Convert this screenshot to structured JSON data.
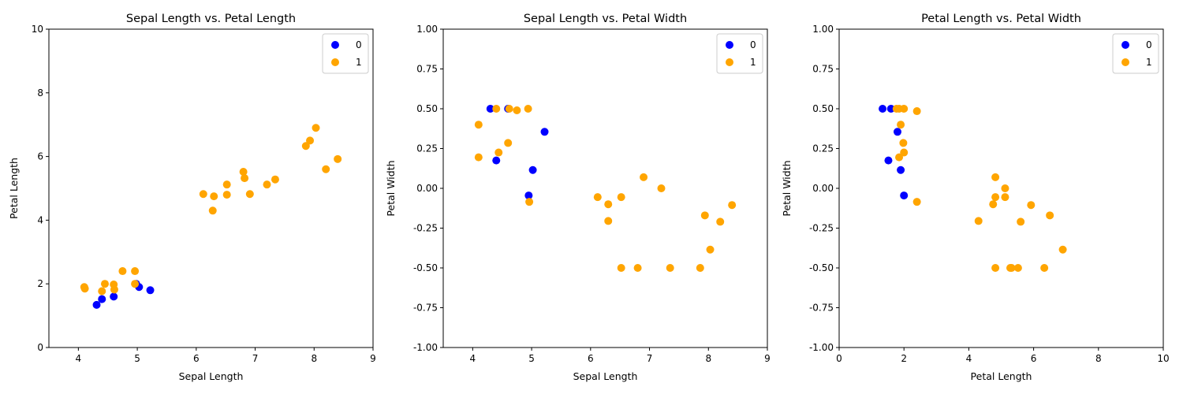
{
  "colors": {
    "series_0": "#0000ff",
    "series_1": "#ffa500"
  },
  "chart_data": [
    {
      "type": "scatter",
      "title": "Sepal Length vs. Petal Length",
      "xlabel": "Sepal Length",
      "ylabel": "Petal Length",
      "xlim": [
        3.5,
        9
      ],
      "ylim": [
        0,
        10
      ],
      "xticks": [
        4,
        5,
        6,
        7,
        8,
        9
      ],
      "yticks": [
        0,
        2,
        4,
        6,
        8,
        10
      ],
      "legend_position": "top-right",
      "series": [
        {
          "name": "0",
          "color": "#0000ff",
          "points": [
            [
              4.31,
              1.34
            ],
            [
              4.4,
              1.52
            ],
            [
              4.6,
              1.6
            ],
            [
              4.98,
              2.0
            ],
            [
              5.03,
              1.9
            ],
            [
              5.22,
              1.8
            ]
          ]
        },
        {
          "name": "1",
          "color": "#ffa500",
          "points": [
            [
              4.1,
              1.9
            ],
            [
              4.11,
              1.85
            ],
            [
              4.4,
              1.77
            ],
            [
              4.45,
              2.0
            ],
            [
              4.6,
              1.98
            ],
            [
              4.61,
              1.82
            ],
            [
              4.75,
              2.4
            ],
            [
              4.96,
              2.4
            ],
            [
              4.96,
              2.0
            ],
            [
              6.12,
              4.82
            ],
            [
              6.28,
              4.3
            ],
            [
              6.3,
              4.75
            ],
            [
              6.52,
              5.12
            ],
            [
              6.52,
              4.8
            ],
            [
              6.8,
              5.52
            ],
            [
              6.82,
              5.32
            ],
            [
              6.91,
              4.82
            ],
            [
              7.2,
              5.12
            ],
            [
              7.34,
              5.28
            ],
            [
              7.86,
              6.33
            ],
            [
              7.93,
              6.5
            ],
            [
              8.03,
              6.9
            ],
            [
              8.2,
              5.6
            ],
            [
              8.4,
              5.92
            ]
          ]
        }
      ]
    },
    {
      "type": "scatter",
      "title": "Sepal Length vs. Petal Width",
      "xlabel": "Sepal Length",
      "ylabel": "Petal Width",
      "xlim": [
        3.5,
        9
      ],
      "ylim": [
        -1,
        1
      ],
      "xticks": [
        4,
        5,
        6,
        7,
        8,
        9
      ],
      "yticks": [
        -1.0,
        -0.75,
        -0.5,
        -0.25,
        0.0,
        0.25,
        0.5,
        0.75,
        1.0
      ],
      "legend_position": "top-right",
      "series": [
        {
          "name": "0",
          "color": "#0000ff",
          "points": [
            [
              4.3,
              0.5
            ],
            [
              4.4,
              0.175
            ],
            [
              4.6,
              0.5
            ],
            [
              4.95,
              -0.045
            ],
            [
              5.02,
              0.115
            ],
            [
              5.22,
              0.355
            ]
          ]
        },
        {
          "name": "1",
          "color": "#ffa500",
          "points": [
            [
              4.1,
              0.4
            ],
            [
              4.1,
              0.195
            ],
            [
              4.4,
              0.5
            ],
            [
              4.44,
              0.225
            ],
            [
              4.6,
              0.285
            ],
            [
              4.62,
              0.5
            ],
            [
              4.75,
              0.49
            ],
            [
              4.94,
              0.5
            ],
            [
              4.96,
              -0.085
            ],
            [
              6.12,
              -0.055
            ],
            [
              6.3,
              -0.1
            ],
            [
              6.3,
              -0.205
            ],
            [
              6.52,
              -0.055
            ],
            [
              6.52,
              -0.5
            ],
            [
              6.8,
              -0.5
            ],
            [
              6.9,
              0.07
            ],
            [
              7.2,
              0.0
            ],
            [
              7.35,
              -0.5
            ],
            [
              7.86,
              -0.5
            ],
            [
              7.94,
              -0.17
            ],
            [
              8.03,
              -0.385
            ],
            [
              8.2,
              -0.21
            ],
            [
              8.4,
              -0.105
            ]
          ]
        }
      ]
    },
    {
      "type": "scatter",
      "title": "Petal Length vs. Petal Width",
      "xlabel": "Petal Length",
      "ylabel": "Petal Width",
      "xlim": [
        0,
        10
      ],
      "ylim": [
        -1,
        1
      ],
      "xticks": [
        0,
        2,
        4,
        6,
        8,
        10
      ],
      "yticks": [
        -1.0,
        -0.75,
        -0.5,
        -0.25,
        0.0,
        0.25,
        0.5,
        0.75,
        1.0
      ],
      "legend_position": "top-right",
      "series": [
        {
          "name": "0",
          "color": "#0000ff",
          "points": [
            [
              1.34,
              0.5
            ],
            [
              1.6,
              0.5
            ],
            [
              1.8,
              0.355
            ],
            [
              1.52,
              0.175
            ],
            [
              1.9,
              0.115
            ],
            [
              2.0,
              -0.045
            ]
          ]
        },
        {
          "name": "1",
          "color": "#ffa500",
          "points": [
            [
              1.77,
              0.5
            ],
            [
              1.85,
              0.5
            ],
            [
              2.0,
              0.5
            ],
            [
              2.4,
              0.485
            ],
            [
              1.9,
              0.4
            ],
            [
              1.98,
              0.285
            ],
            [
              2.0,
              0.225
            ],
            [
              1.85,
              0.195
            ],
            [
              2.4,
              -0.085
            ],
            [
              4.3,
              -0.205
            ],
            [
              4.75,
              -0.1
            ],
            [
              4.82,
              0.07
            ],
            [
              4.82,
              -0.055
            ],
            [
              4.82,
              -0.5
            ],
            [
              5.12,
              0.0
            ],
            [
              5.12,
              -0.055
            ],
            [
              5.28,
              -0.5
            ],
            [
              5.32,
              -0.5
            ],
            [
              5.52,
              -0.5
            ],
            [
              5.6,
              -0.21
            ],
            [
              5.92,
              -0.105
            ],
            [
              6.33,
              -0.5
            ],
            [
              6.5,
              -0.17
            ],
            [
              6.9,
              -0.385
            ]
          ]
        }
      ]
    }
  ]
}
